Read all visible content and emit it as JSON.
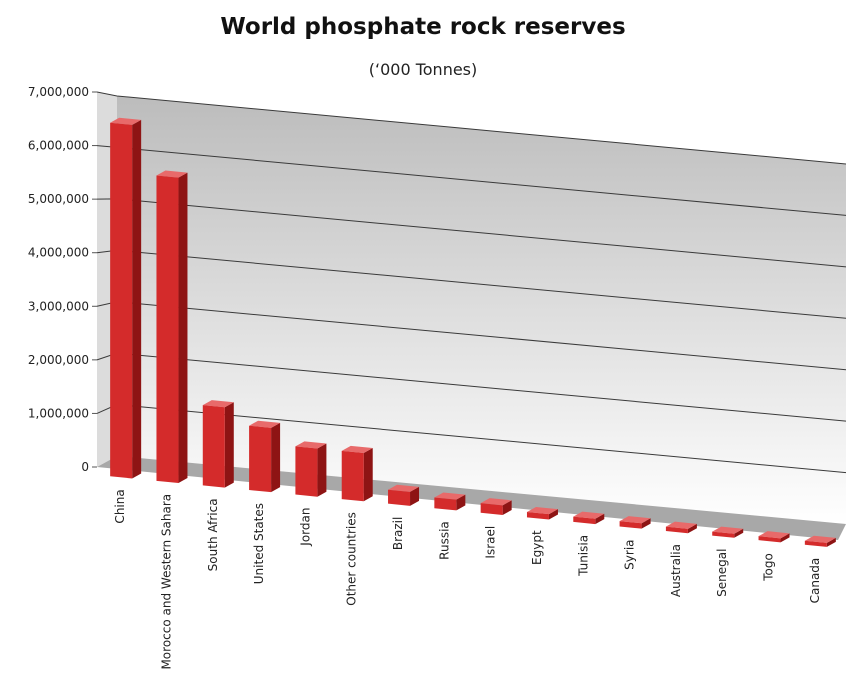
{
  "chart_data": {
    "type": "bar",
    "title": "World phosphate rock reserves",
    "subtitle": "(‘000 Tonnes)",
    "categories": [
      "China",
      "Morocco and Western Sahara",
      "South Africa",
      "United States",
      "Jordan",
      "Other countries",
      "Brazil",
      "Russia",
      "Israel",
      "Egypt",
      "Tunisia",
      "Syria",
      "Australia",
      "Senegal",
      "Togo",
      "Canada"
    ],
    "values": [
      6600000,
      5700000,
      1500000,
      1200000,
      900000,
      900000,
      260000,
      200000,
      180000,
      100000,
      100000,
      100000,
      82000,
      50000,
      30000,
      25000
    ],
    "ylim": [
      0,
      7000000
    ],
    "yticks": [
      0,
      1000000,
      2000000,
      3000000,
      4000000,
      5000000,
      6000000,
      7000000
    ],
    "ytick_labels": [
      "0",
      "1,000,000",
      "2,000,000",
      "3,000,000",
      "4,000,000",
      "5,000,000",
      "6,000,000",
      "7,000,000"
    ],
    "xlabel": "",
    "ylabel": "",
    "grid": true,
    "legend": "none",
    "style": "3d",
    "colors": {
      "bar_front": "#d42b2b",
      "bar_side": "#8e1414",
      "bar_top": "#e86a6a",
      "floor": "#a8a8a8",
      "wall_top": "#bcbcbc",
      "wall_bottom": "#ffffff",
      "gridline": "#3a3a3a"
    }
  }
}
